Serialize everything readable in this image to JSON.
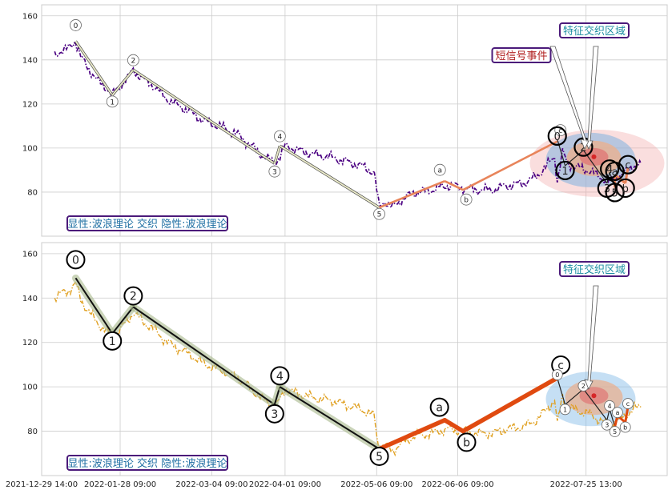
{
  "chart_data": [
    {
      "type": "line",
      "panel": "top",
      "ylim": [
        60,
        165
      ],
      "yticks": [
        80,
        100,
        120,
        140,
        160
      ],
      "grid": true,
      "price_color": "#4b0082",
      "price_style": "dash-dot",
      "price_series": [
        [
          "2022-01-03",
          142
        ],
        [
          "2022-01-05",
          144
        ],
        [
          "2022-01-08",
          145
        ],
        [
          "2022-01-11",
          148.5
        ],
        [
          "2022-01-13",
          141
        ],
        [
          "2022-01-16",
          136
        ],
        [
          "2022-01-19",
          131
        ],
        [
          "2022-01-23",
          127
        ],
        [
          "2022-01-25",
          124
        ],
        [
          "2022-01-28",
          128
        ],
        [
          "2022-01-31",
          132
        ],
        [
          "2022-02-02",
          135.5
        ],
        [
          "2022-02-06",
          131
        ],
        [
          "2022-02-10",
          128
        ],
        [
          "2022-02-14",
          123
        ],
        [
          "2022-02-18",
          120
        ],
        [
          "2022-02-23",
          117
        ],
        [
          "2022-02-28",
          113
        ],
        [
          "2022-03-04",
          111
        ],
        [
          "2022-03-09",
          109
        ],
        [
          "2022-03-14",
          106
        ],
        [
          "2022-03-19",
          101
        ],
        [
          "2022-03-24",
          96
        ],
        [
          "2022-03-28",
          93
        ],
        [
          "2022-03-30",
          96
        ],
        [
          "2022-04-01",
          101
        ],
        [
          "2022-04-06",
          99
        ],
        [
          "2022-04-12",
          97
        ],
        [
          "2022-04-18",
          96
        ],
        [
          "2022-04-24",
          94
        ],
        [
          "2022-04-30",
          92
        ],
        [
          "2022-05-05",
          89
        ],
        [
          "2022-05-07",
          73
        ],
        [
          "2022-05-09",
          76
        ],
        [
          "2022-05-12",
          73
        ],
        [
          "2022-05-16",
          77
        ],
        [
          "2022-05-21",
          80
        ],
        [
          "2022-05-27",
          81
        ],
        [
          "2022-06-02",
          83
        ],
        [
          "2022-06-08",
          82
        ],
        [
          "2022-06-13",
          81
        ],
        [
          "2022-06-19",
          81
        ],
        [
          "2022-06-25",
          83
        ],
        [
          "2022-07-01",
          84
        ],
        [
          "2022-07-06",
          87
        ],
        [
          "2022-07-10",
          92
        ],
        [
          "2022-07-13",
          96
        ],
        [
          "2022-07-14",
          85
        ],
        [
          "2022-07-16",
          98
        ],
        [
          "2022-07-18",
          93
        ],
        [
          "2022-07-22",
          91
        ],
        [
          "2022-07-26",
          90
        ],
        [
          "2022-07-30",
          87
        ],
        [
          "2022-08-03",
          85
        ],
        [
          "2022-08-06",
          87
        ],
        [
          "2022-08-09",
          89
        ],
        [
          "2022-08-12",
          92
        ],
        [
          "2022-08-15",
          93
        ]
      ],
      "wave_color": "#e8e8c8",
      "waves": [
        {
          "label": "0",
          "date": "2022-01-11",
          "price": 148.5
        },
        {
          "label": "1",
          "date": "2022-01-25",
          "price": 124
        },
        {
          "label": "2",
          "date": "2022-02-02",
          "price": 135.5
        },
        {
          "label": "3",
          "date": "2022-03-28",
          "price": 93
        },
        {
          "label": "4",
          "date": "2022-03-30",
          "price": 101
        },
        {
          "label": "5",
          "date": "2022-05-07",
          "price": 73
        },
        {
          "label": "a",
          "date": "2022-06-01",
          "price": 85
        },
        {
          "label": "b",
          "date": "2022-06-08",
          "price": 81
        },
        {
          "label": "c",
          "date": "2022-07-14",
          "price": 103
        }
      ],
      "corrective_color": "#e8845a",
      "small_waves": [
        {
          "label": "0",
          "date": "2022-07-14",
          "price": 104
        },
        {
          "label": "1",
          "date": "2022-07-17",
          "price": 92
        },
        {
          "label": "2",
          "date": "2022-07-24",
          "price": 99
        },
        {
          "label": "3",
          "date": "2022-08-02",
          "price": 84
        },
        {
          "label": "4",
          "date": "2022-08-03",
          "price": 89
        },
        {
          "label": "5",
          "date": "2022-08-05",
          "price": 82
        },
        {
          "label": "a",
          "date": "2022-08-05",
          "price": 88
        },
        {
          "label": "b",
          "date": "2022-08-09",
          "price": 84
        },
        {
          "label": "c",
          "date": "2022-08-10",
          "price": 91
        }
      ],
      "ellipse_center": {
        "date": "2022-07-28",
        "price": 96
      },
      "annotations": [
        {
          "text": "特征交织区域",
          "color": "#1f8fa3"
        },
        {
          "text": "短信号事件",
          "color": "#b22222"
        }
      ],
      "legend_text": "显性:波浪理论 交织 隐性:波浪理论"
    },
    {
      "type": "line",
      "panel": "bottom",
      "ylim": [
        60,
        165
      ],
      "yticks": [
        80,
        100,
        120,
        140,
        160
      ],
      "grid": true,
      "price_color": "#e0a020",
      "price_style": "dash-dot",
      "waves": [
        {
          "label": "0",
          "date": "2022-01-11",
          "price": 149
        },
        {
          "label": "1",
          "date": "2022-01-25",
          "price": 124
        },
        {
          "label": "2",
          "date": "2022-02-02",
          "price": 136
        },
        {
          "label": "3",
          "date": "2022-03-28",
          "price": 92
        },
        {
          "label": "4",
          "date": "2022-03-30",
          "price": 100
        },
        {
          "label": "5",
          "date": "2022-05-07",
          "price": 72
        },
        {
          "label": "a",
          "date": "2022-06-01",
          "price": 85
        },
        {
          "label": "b",
          "date": "2022-06-08",
          "price": 80
        },
        {
          "label": "c",
          "date": "2022-07-14",
          "price": 104
        }
      ],
      "impulse_color": "#111111",
      "corrective_color": "#e04a10",
      "small_waves": [
        {
          "label": "0",
          "date": "2022-07-14",
          "price": 104
        },
        {
          "label": "1",
          "date": "2022-07-17",
          "price": 92
        },
        {
          "label": "2",
          "date": "2022-07-24",
          "price": 99
        },
        {
          "label": "3",
          "date": "2022-08-02",
          "price": 85
        },
        {
          "label": "4",
          "date": "2022-08-03",
          "price": 90
        },
        {
          "label": "5",
          "date": "2022-08-05",
          "price": 82
        },
        {
          "label": "a",
          "date": "2022-08-06",
          "price": 87
        },
        {
          "label": "b",
          "date": "2022-08-09",
          "price": 84
        },
        {
          "label": "c",
          "date": "2022-08-10",
          "price": 91
        }
      ],
      "ellipse_center": {
        "date": "2022-07-28",
        "price": 96
      },
      "annotations": [
        {
          "text": "特征交织区域",
          "color": "#1f8fa3"
        }
      ],
      "legend_text": "显性:波浪理论 交织 隐性:波浪理论"
    }
  ],
  "x_axis": {
    "range": [
      "2021-12-29",
      "2022-08-25"
    ],
    "ticks": [
      {
        "label": "2021-12-29 14:00",
        "date": "2021-12-29"
      },
      {
        "label": "2022-01-28 09:00",
        "date": "2022-01-28"
      },
      {
        "label": "2022-03-04 09:00",
        "date": "2022-03-04"
      },
      {
        "label": "2022-04-01 09:00",
        "date": "2022-04-01"
      },
      {
        "label": "2022-05-06 09:00",
        "date": "2022-05-06"
      },
      {
        "label": "2022-06-06 09:00",
        "date": "2022-06-06"
      },
      {
        "label": "2022-07-25 13:00",
        "date": "2022-07-25"
      }
    ]
  }
}
